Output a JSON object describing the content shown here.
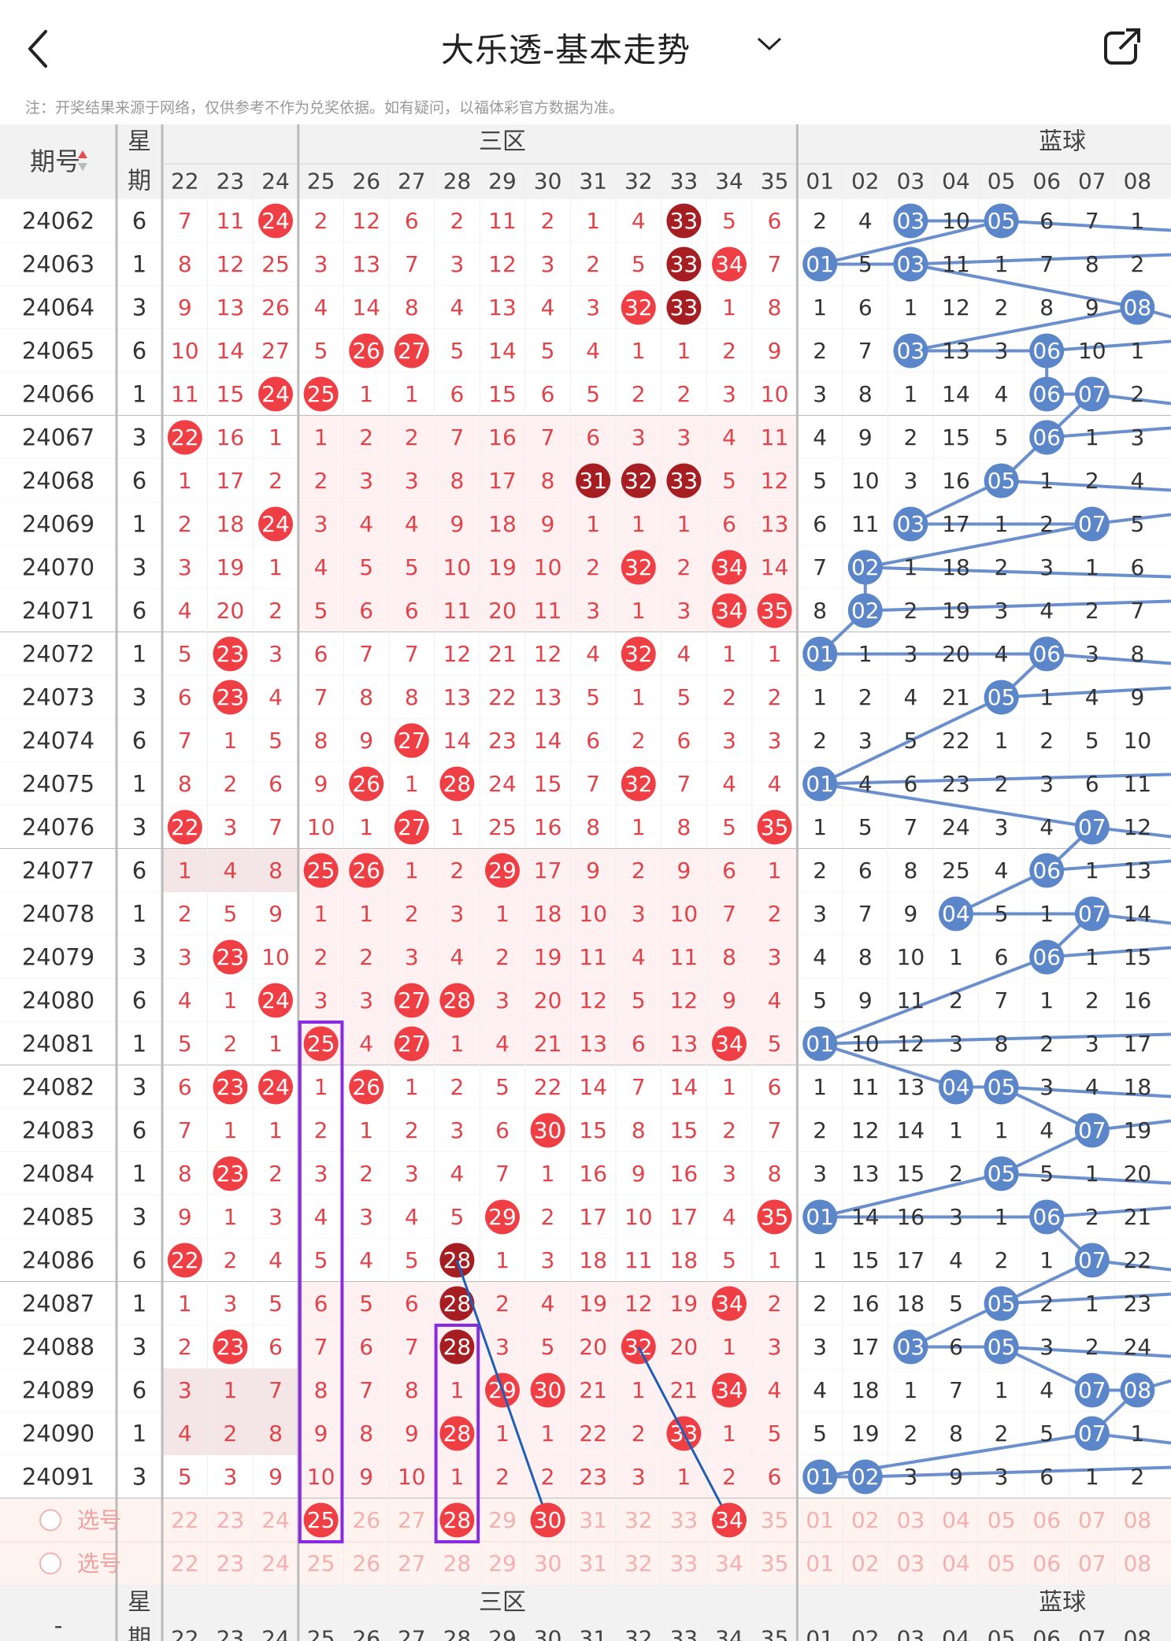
{
  "header": {
    "title": "大乐透-基本走势",
    "note": "注：开奖结果来源于网络，仅供参考不作为兑奖依据。如有疑问，以福体彩官方数据为准。"
  },
  "table": {
    "period_label": "期号",
    "week_label_1": "星",
    "week_label_2": "期",
    "zone_label": "三区",
    "blue_label": "蓝球",
    "select_label": "选号",
    "footer_dash": "-",
    "red_columns": [
      "22",
      "23",
      "24",
      "25",
      "26",
      "27",
      "28",
      "29",
      "30",
      "31",
      "32",
      "33",
      "34",
      "35"
    ],
    "blue_columns": [
      "01",
      "02",
      "03",
      "04",
      "05",
      "06",
      "07",
      "08"
    ],
    "rows": [
      {
        "period": "24062",
        "week": "6",
        "red": [
          "7",
          "11",
          "24",
          "2",
          "12",
          "6",
          "2",
          "11",
          "2",
          "1",
          "4",
          "33",
          "5",
          "6"
        ],
        "blue": [
          "2",
          "4",
          "03",
          "10",
          "05",
          "6",
          "7",
          "1"
        ]
      },
      {
        "period": "24063",
        "week": "1",
        "red": [
          "8",
          "12",
          "25",
          "3",
          "13",
          "7",
          "3",
          "12",
          "3",
          "2",
          "5",
          "33",
          "34",
          "7"
        ],
        "blue": [
          "01",
          "5",
          "03",
          "11",
          "1",
          "7",
          "8",
          "2"
        ]
      },
      {
        "period": "24064",
        "week": "3",
        "red": [
          "9",
          "13",
          "26",
          "4",
          "14",
          "8",
          "4",
          "13",
          "4",
          "3",
          "32",
          "33",
          "1",
          "8"
        ],
        "blue": [
          "1",
          "6",
          "1",
          "12",
          "2",
          "8",
          "9",
          "08"
        ]
      },
      {
        "period": "24065",
        "week": "6",
        "red": [
          "10",
          "14",
          "27",
          "5",
          "26",
          "27",
          "5",
          "14",
          "5",
          "4",
          "1",
          "1",
          "2",
          "9"
        ],
        "blue": [
          "2",
          "7",
          "03",
          "13",
          "3",
          "06",
          "10",
          "1"
        ]
      },
      {
        "period": "24066",
        "week": "1",
        "red": [
          "11",
          "15",
          "24",
          "25",
          "1",
          "1",
          "6",
          "15",
          "6",
          "5",
          "2",
          "2",
          "3",
          "10"
        ],
        "blue": [
          "3",
          "8",
          "1",
          "14",
          "4",
          "06",
          "07",
          "2"
        ]
      },
      {
        "period": "24067",
        "week": "3",
        "red": [
          "22",
          "16",
          "1",
          "1",
          "2",
          "2",
          "7",
          "16",
          "7",
          "6",
          "3",
          "3",
          "4",
          "11"
        ],
        "blue": [
          "4",
          "9",
          "2",
          "15",
          "5",
          "06",
          "1",
          "3"
        ]
      },
      {
        "period": "24068",
        "week": "6",
        "red": [
          "1",
          "17",
          "2",
          "2",
          "3",
          "3",
          "8",
          "17",
          "8",
          "31",
          "32",
          "33",
          "5",
          "12"
        ],
        "blue": [
          "5",
          "10",
          "3",
          "16",
          "05",
          "1",
          "2",
          "4"
        ]
      },
      {
        "period": "24069",
        "week": "1",
        "red": [
          "2",
          "18",
          "24",
          "3",
          "4",
          "4",
          "9",
          "18",
          "9",
          "1",
          "1",
          "1",
          "6",
          "13"
        ],
        "blue": [
          "6",
          "11",
          "03",
          "17",
          "1",
          "2",
          "07",
          "5"
        ]
      },
      {
        "period": "24070",
        "week": "3",
        "red": [
          "3",
          "19",
          "1",
          "4",
          "5",
          "5",
          "10",
          "19",
          "10",
          "2",
          "32",
          "2",
          "34",
          "14"
        ],
        "blue": [
          "7",
          "02",
          "1",
          "18",
          "2",
          "3",
          "1",
          "6"
        ]
      },
      {
        "period": "24071",
        "week": "6",
        "red": [
          "4",
          "20",
          "2",
          "5",
          "6",
          "6",
          "11",
          "20",
          "11",
          "3",
          "1",
          "3",
          "34",
          "35"
        ],
        "blue": [
          "8",
          "02",
          "2",
          "19",
          "3",
          "4",
          "2",
          "7"
        ]
      },
      {
        "period": "24072",
        "week": "1",
        "red": [
          "5",
          "23",
          "3",
          "6",
          "7",
          "7",
          "12",
          "21",
          "12",
          "4",
          "32",
          "4",
          "1",
          "1"
        ],
        "blue": [
          "01",
          "1",
          "3",
          "20",
          "4",
          "06",
          "3",
          "8"
        ]
      },
      {
        "period": "24073",
        "week": "3",
        "red": [
          "6",
          "23",
          "4",
          "7",
          "8",
          "8",
          "13",
          "22",
          "13",
          "5",
          "1",
          "5",
          "2",
          "2"
        ],
        "blue": [
          "1",
          "2",
          "4",
          "21",
          "05",
          "1",
          "4",
          "9"
        ]
      },
      {
        "period": "24074",
        "week": "6",
        "red": [
          "7",
          "1",
          "5",
          "8",
          "9",
          "27",
          "14",
          "23",
          "14",
          "6",
          "2",
          "6",
          "3",
          "3"
        ],
        "blue": [
          "2",
          "3",
          "5",
          "22",
          "1",
          "2",
          "5",
          "10"
        ]
      },
      {
        "period": "24075",
        "week": "1",
        "red": [
          "8",
          "2",
          "6",
          "9",
          "26",
          "1",
          "28",
          "24",
          "15",
          "7",
          "32",
          "7",
          "4",
          "4"
        ],
        "blue": [
          "01",
          "4",
          "6",
          "23",
          "2",
          "3",
          "6",
          "11"
        ]
      },
      {
        "period": "24076",
        "week": "3",
        "red": [
          "22",
          "3",
          "7",
          "10",
          "1",
          "27",
          "1",
          "25",
          "16",
          "8",
          "1",
          "8",
          "5",
          "35"
        ],
        "blue": [
          "1",
          "5",
          "7",
          "24",
          "3",
          "4",
          "07",
          "12"
        ]
      },
      {
        "period": "24077",
        "week": "6",
        "red": [
          "1",
          "4",
          "8",
          "25",
          "26",
          "1",
          "2",
          "29",
          "17",
          "9",
          "2",
          "9",
          "6",
          "1"
        ],
        "blue": [
          "2",
          "6",
          "8",
          "25",
          "4",
          "06",
          "1",
          "13"
        ]
      },
      {
        "period": "24078",
        "week": "1",
        "red": [
          "2",
          "5",
          "9",
          "1",
          "1",
          "2",
          "3",
          "1",
          "18",
          "10",
          "3",
          "10",
          "7",
          "2"
        ],
        "blue": [
          "3",
          "7",
          "9",
          "04",
          "5",
          "1",
          "07",
          "14"
        ]
      },
      {
        "period": "24079",
        "week": "3",
        "red": [
          "3",
          "23",
          "10",
          "2",
          "2",
          "3",
          "4",
          "2",
          "19",
          "11",
          "4",
          "11",
          "8",
          "3"
        ],
        "blue": [
          "4",
          "8",
          "10",
          "1",
          "6",
          "06",
          "1",
          "15"
        ]
      },
      {
        "period": "24080",
        "week": "6",
        "red": [
          "4",
          "1",
          "24",
          "3",
          "3",
          "27",
          "28",
          "3",
          "20",
          "12",
          "5",
          "12",
          "9",
          "4"
        ],
        "blue": [
          "5",
          "9",
          "11",
          "2",
          "7",
          "1",
          "2",
          "16"
        ]
      },
      {
        "period": "24081",
        "week": "1",
        "red": [
          "5",
          "2",
          "1",
          "25",
          "4",
          "27",
          "1",
          "4",
          "21",
          "13",
          "6",
          "13",
          "34",
          "5"
        ],
        "blue": [
          "01",
          "10",
          "12",
          "3",
          "8",
          "2",
          "3",
          "17"
        ]
      },
      {
        "period": "24082",
        "week": "3",
        "red": [
          "6",
          "23",
          "24",
          "1",
          "26",
          "1",
          "2",
          "5",
          "22",
          "14",
          "7",
          "14",
          "1",
          "6"
        ],
        "blue": [
          "1",
          "11",
          "13",
          "04",
          "05",
          "3",
          "4",
          "18"
        ]
      },
      {
        "period": "24083",
        "week": "6",
        "red": [
          "7",
          "1",
          "1",
          "2",
          "1",
          "2",
          "3",
          "6",
          "30",
          "15",
          "8",
          "15",
          "2",
          "7"
        ],
        "blue": [
          "2",
          "12",
          "14",
          "1",
          "1",
          "4",
          "07",
          "19"
        ]
      },
      {
        "period": "24084",
        "week": "1",
        "red": [
          "8",
          "23",
          "2",
          "3",
          "2",
          "3",
          "4",
          "7",
          "1",
          "16",
          "9",
          "16",
          "3",
          "8"
        ],
        "blue": [
          "3",
          "13",
          "15",
          "2",
          "05",
          "5",
          "1",
          "20"
        ]
      },
      {
        "period": "24085",
        "week": "3",
        "red": [
          "9",
          "1",
          "3",
          "4",
          "3",
          "4",
          "5",
          "29",
          "2",
          "17",
          "10",
          "17",
          "4",
          "35"
        ],
        "blue": [
          "01",
          "14",
          "16",
          "3",
          "1",
          "06",
          "2",
          "21"
        ]
      },
      {
        "period": "24086",
        "week": "6",
        "red": [
          "22",
          "2",
          "4",
          "5",
          "4",
          "5",
          "28",
          "1",
          "3",
          "18",
          "11",
          "18",
          "5",
          "1"
        ],
        "blue": [
          "1",
          "15",
          "17",
          "4",
          "2",
          "1",
          "07",
          "22"
        ]
      },
      {
        "period": "24087",
        "week": "1",
        "red": [
          "1",
          "3",
          "5",
          "6",
          "5",
          "6",
          "28",
          "2",
          "4",
          "19",
          "12",
          "19",
          "34",
          "2"
        ],
        "blue": [
          "2",
          "16",
          "18",
          "5",
          "05",
          "2",
          "1",
          "23"
        ]
      },
      {
        "period": "24088",
        "week": "3",
        "red": [
          "2",
          "23",
          "6",
          "7",
          "6",
          "7",
          "28",
          "3",
          "5",
          "20",
          "32",
          "20",
          "1",
          "3"
        ],
        "blue": [
          "3",
          "17",
          "03",
          "6",
          "05",
          "3",
          "2",
          "24"
        ]
      },
      {
        "period": "24089",
        "week": "6",
        "red": [
          "3",
          "1",
          "7",
          "8",
          "7",
          "8",
          "1",
          "29",
          "30",
          "21",
          "1",
          "21",
          "34",
          "4"
        ],
        "blue": [
          "4",
          "18",
          "1",
          "7",
          "1",
          "4",
          "07",
          "08"
        ]
      },
      {
        "period": "24090",
        "week": "1",
        "red": [
          "4",
          "2",
          "8",
          "9",
          "8",
          "9",
          "28",
          "1",
          "1",
          "22",
          "2",
          "33",
          "1",
          "5"
        ],
        "blue": [
          "5",
          "19",
          "2",
          "8",
          "2",
          "5",
          "07",
          "1"
        ]
      },
      {
        "period": "24091",
        "week": "3",
        "red": [
          "5",
          "3",
          "9",
          "10",
          "9",
          "10",
          "1",
          "2",
          "2",
          "23",
          "3",
          "1",
          "2",
          "6"
        ],
        "blue": [
          "01",
          "02",
          "3",
          "9",
          "3",
          "6",
          "1",
          "2"
        ]
      }
    ],
    "select_rows": [
      {
        "label": "选号",
        "red": [
          "22",
          "23",
          "24",
          "25",
          "26",
          "27",
          "28",
          "29",
          "30",
          "31",
          "32",
          "33",
          "34",
          "35"
        ],
        "blue": [
          "01",
          "02",
          "03",
          "04",
          "05",
          "06",
          "07",
          "08"
        ],
        "red_selected": [
          "25",
          "28",
          "30",
          "34"
        ]
      },
      {
        "label": "选号",
        "red": [
          "22",
          "23",
          "24",
          "25",
          "26",
          "27",
          "28",
          "29",
          "30",
          "31",
          "32",
          "33",
          "34",
          "35"
        ],
        "blue": [
          "01",
          "02",
          "03",
          "04",
          "05",
          "06",
          "07",
          "08"
        ],
        "red_selected": []
      }
    ]
  },
  "colors": {
    "red_ball": "#ef3f45",
    "dark_ball": "#a61e22",
    "blue_ball": "#5b86c9",
    "red_text": "#e0434a",
    "line_blue": "#6a8fcc",
    "highlight_box": "#8a2be2",
    "trend_line": "#1d5fb8"
  }
}
